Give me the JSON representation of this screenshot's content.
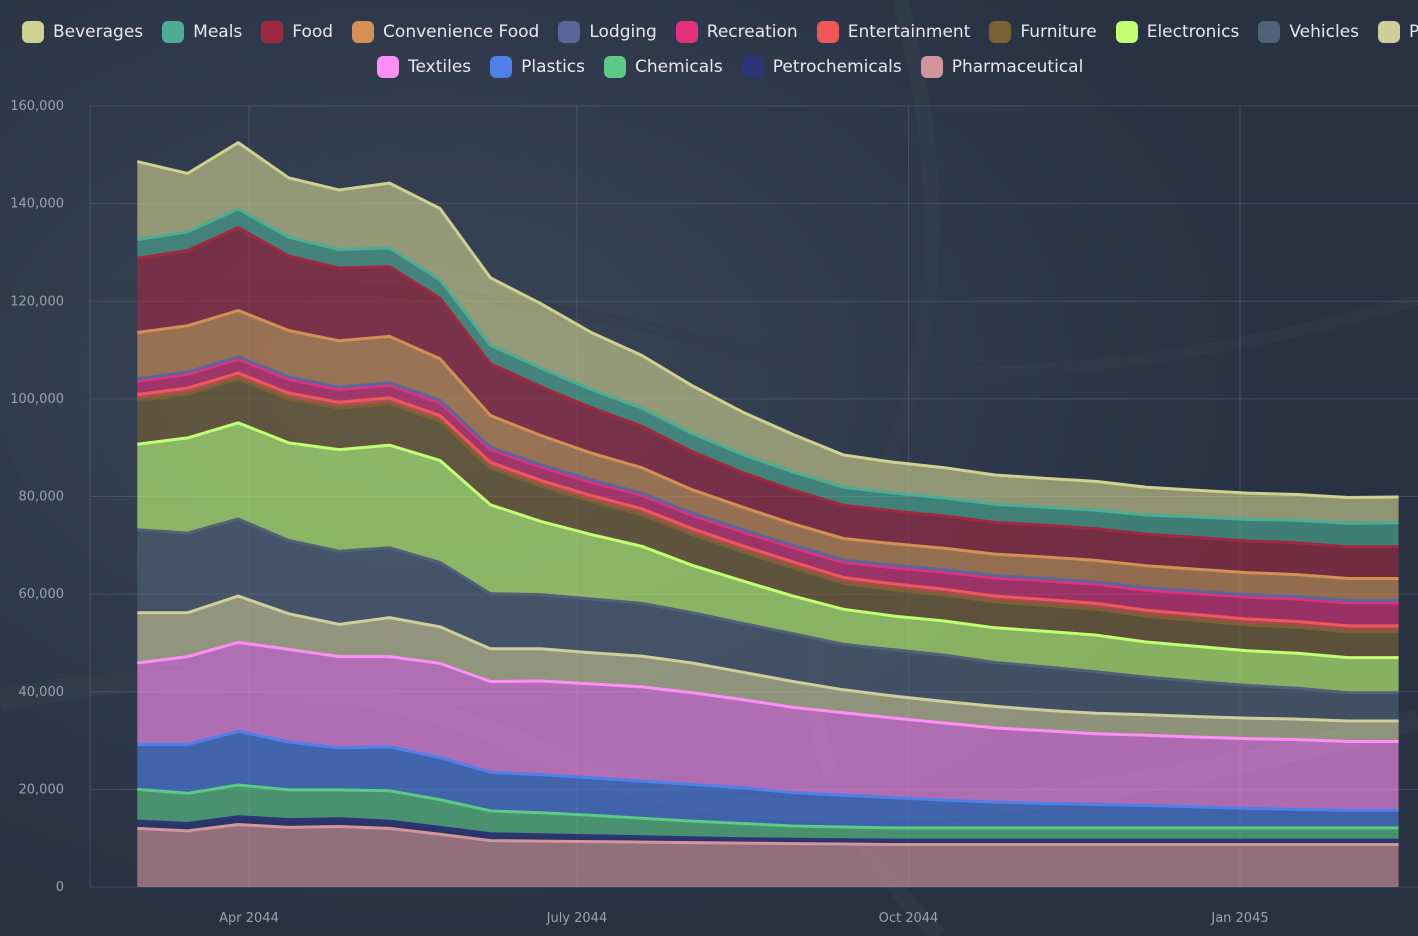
{
  "chart_data": {
    "type": "area",
    "stacked": true,
    "title": "",
    "xlabel": "",
    "ylabel": "",
    "ylim": [
      0,
      160000
    ],
    "y_ticks": [
      "0",
      "20,000",
      "40,000",
      "60,000",
      "80,000",
      "100,000",
      "120,000",
      "140,000",
      "160,000"
    ],
    "y_tick_values": [
      0,
      20000,
      40000,
      60000,
      80000,
      100000,
      120000,
      140000,
      160000
    ],
    "x_ticks": [
      "Apr 2044",
      "July 2044",
      "Oct 2044",
      "Jan 2045"
    ],
    "x_tick_dates": [
      "2044-04-01",
      "2044-07-01",
      "2044-10-01",
      "2045-01-01"
    ],
    "x": [
      "2044-03-01",
      "2044-03-15",
      "2044-03-29",
      "2044-04-12",
      "2044-04-26",
      "2044-05-10",
      "2044-05-24",
      "2044-06-07",
      "2044-06-21",
      "2044-07-05",
      "2044-07-19",
      "2044-08-02",
      "2044-08-16",
      "2044-08-30",
      "2044-09-13",
      "2044-09-27",
      "2044-10-11",
      "2044-10-25",
      "2044-11-08",
      "2044-11-22",
      "2044-12-06",
      "2044-12-20",
      "2045-01-03",
      "2045-01-17",
      "2045-01-31",
      "2045-02-14"
    ],
    "grid": true,
    "legend_position": "top",
    "series": [
      {
        "name": "Pharmaceutical",
        "color": "#d1959d",
        "values": [
          12000,
          11500,
          12800,
          12200,
          12400,
          12000,
          10800,
          9500,
          9400,
          9300,
          9200,
          9100,
          9000,
          8900,
          8800,
          8700,
          8700,
          8700,
          8700,
          8700,
          8700,
          8700,
          8700,
          8700,
          8700,
          8700
        ]
      },
      {
        "name": "Petrochemicals",
        "color": "#2d3478",
        "values": [
          1500,
          1500,
          1600,
          1600,
          1600,
          1500,
          1400,
          1400,
          1300,
          1200,
          1100,
          1000,
          900,
          900,
          900,
          900,
          900,
          900,
          900,
          900,
          900,
          900,
          900,
          900,
          900,
          900
        ]
      },
      {
        "name": "Chemicals",
        "color": "#5cc987",
        "values": [
          6500,
          6200,
          6500,
          6100,
          5900,
          6200,
          5700,
          4700,
          4500,
          4200,
          3800,
          3400,
          3100,
          2700,
          2600,
          2500,
          2500,
          2500,
          2500,
          2500,
          2500,
          2500,
          2500,
          2500,
          2500,
          2500
        ]
      },
      {
        "name": "Plastics",
        "color": "#4f7fe8",
        "values": [
          9200,
          10000,
          11000,
          9800,
          8600,
          9000,
          8600,
          7900,
          7800,
          7700,
          7600,
          7500,
          7300,
          6800,
          6500,
          6200,
          5700,
          5300,
          5000,
          4800,
          4600,
          4300,
          4000,
          3800,
          3600,
          3600
        ]
      },
      {
        "name": "Textiles",
        "color": "#ff8ff4",
        "values": [
          16700,
          18000,
          18200,
          19000,
          18700,
          18500,
          19300,
          18600,
          19200,
          19200,
          19300,
          18800,
          18100,
          17500,
          16900,
          16300,
          15800,
          15200,
          14900,
          14500,
          14400,
          14300,
          14300,
          14300,
          14100,
          14100
        ]
      },
      {
        "name": "Paper",
        "color": "#cfcd9c",
        "values": [
          10300,
          9000,
          9500,
          7300,
          6600,
          8000,
          7500,
          6700,
          6600,
          6400,
          6300,
          6100,
          5600,
          5300,
          4700,
          4500,
          4400,
          4400,
          4200,
          4200,
          4200,
          4200,
          4200,
          4200,
          4200,
          4200
        ]
      },
      {
        "name": "Vehicles",
        "color": "#516177",
        "values": [
          17000,
          16300,
          15800,
          15000,
          15000,
          14300,
          13200,
          11300,
          11100,
          11000,
          10800,
          10300,
          10000,
          9800,
          9300,
          9500,
          9500,
          9000,
          8900,
          8500,
          7700,
          7200,
          6700,
          6300,
          5800,
          5800
        ]
      },
      {
        "name": "Electronics",
        "color": "#c2ff72",
        "values": [
          17500,
          19500,
          19700,
          20000,
          20800,
          21000,
          20900,
          18200,
          15000,
          13200,
          11700,
          9700,
          8700,
          7700,
          7200,
          6900,
          7000,
          7100,
          7300,
          7500,
          7200,
          7200,
          7100,
          7200,
          7200,
          7200
        ]
      },
      {
        "name": "Furniture",
        "color": "#7b6233",
        "values": [
          9000,
          9000,
          9000,
          9000,
          8500,
          8500,
          8000,
          7500,
          7200,
          6800,
          6500,
          6300,
          6000,
          5800,
          5300,
          5400,
          5300,
          5300,
          5300,
          5300,
          5300,
          5300,
          5300,
          5300,
          5300,
          5300
        ]
      },
      {
        "name": "Entertainment",
        "color": "#ef5858",
        "values": [
          1200,
          1200,
          1200,
          1200,
          1200,
          1200,
          1200,
          1200,
          1200,
          1200,
          1200,
          1200,
          1200,
          1200,
          1200,
          1200,
          1200,
          1200,
          1200,
          1200,
          1200,
          1200,
          1200,
          1200,
          1200,
          1200
        ]
      },
      {
        "name": "Recreation",
        "color": "#e0317a",
        "values": [
          2700,
          2800,
          2800,
          2800,
          2600,
          2600,
          2600,
          2600,
          2700,
          2700,
          2700,
          2700,
          2800,
          2900,
          3100,
          3300,
          3500,
          3700,
          3800,
          3900,
          4100,
          4300,
          4500,
          4600,
          4700,
          4700
        ]
      },
      {
        "name": "Lodging",
        "color": "#5b679c",
        "values": [
          500,
          500,
          500,
          500,
          500,
          500,
          500,
          500,
          500,
          500,
          500,
          500,
          500,
          500,
          500,
          500,
          500,
          500,
          500,
          500,
          500,
          500,
          500,
          500,
          500,
          500
        ]
      },
      {
        "name": "Convenience Food",
        "color": "#d39055",
        "values": [
          9500,
          9500,
          9500,
          9500,
          9500,
          9500,
          8500,
          6500,
          6000,
          5500,
          5200,
          4800,
          4600,
          4400,
          4400,
          4400,
          4400,
          4400,
          4400,
          4400,
          4500,
          4500,
          4500,
          4500,
          4500,
          4500
        ]
      },
      {
        "name": "Food",
        "color": "#a02942",
        "values": [
          15200,
          15400,
          17000,
          15300,
          14900,
          14300,
          12400,
          10600,
          10000,
          9300,
          8500,
          7800,
          7100,
          6900,
          6800,
          6700,
          6600,
          6500,
          6500,
          6500,
          6500,
          6500,
          6500,
          6500,
          6500,
          6500
        ]
      },
      {
        "name": "Meals",
        "color": "#4cad94",
        "values": [
          3800,
          3800,
          3800,
          3800,
          3800,
          3800,
          3800,
          3800,
          3800,
          3700,
          3700,
          3700,
          3700,
          3700,
          3700,
          3700,
          3700,
          3700,
          3700,
          3800,
          3900,
          4200,
          4400,
          4600,
          4800,
          4900
        ]
      },
      {
        "name": "Beverages",
        "color": "#cfd18f",
        "values": [
          16000,
          12000,
          13600,
          12200,
          12200,
          13300,
          14600,
          13800,
          13200,
          11700,
          10800,
          9800,
          8700,
          7700,
          6600,
          6300,
          6200,
          6000,
          5900,
          5900,
          5700,
          5500,
          5400,
          5300,
          5300,
          5300
        ]
      }
    ]
  },
  "legend": {
    "row1": [
      {
        "label": "Beverages",
        "color": "#cfd18f"
      },
      {
        "label": "Meals",
        "color": "#4cad94"
      },
      {
        "label": "Food",
        "color": "#a02942"
      },
      {
        "label": "Convenience Food",
        "color": "#d39055"
      },
      {
        "label": "Lodging",
        "color": "#5b679c"
      },
      {
        "label": "Recreation",
        "color": "#e0317a"
      },
      {
        "label": "Entertainment",
        "color": "#ef5858"
      },
      {
        "label": "Furniture",
        "color": "#7b6233"
      },
      {
        "label": "Electronics",
        "color": "#c2ff72"
      },
      {
        "label": "Vehicles",
        "color": "#516177"
      },
      {
        "label": "Paper",
        "color": "#cfcd9c"
      }
    ],
    "row2": [
      {
        "label": "Textiles",
        "color": "#ff8ff4"
      },
      {
        "label": "Plastics",
        "color": "#4f7fe8"
      },
      {
        "label": "Chemicals",
        "color": "#5cc987"
      },
      {
        "label": "Petrochemicals",
        "color": "#2d3478"
      },
      {
        "label": "Pharmaceutical",
        "color": "#d1959d"
      }
    ]
  },
  "colors": {
    "background": "#2d3748",
    "grid": "#5b6477",
    "axis_text": "#9aa1ae",
    "legend_text": "#e6e8ee"
  }
}
